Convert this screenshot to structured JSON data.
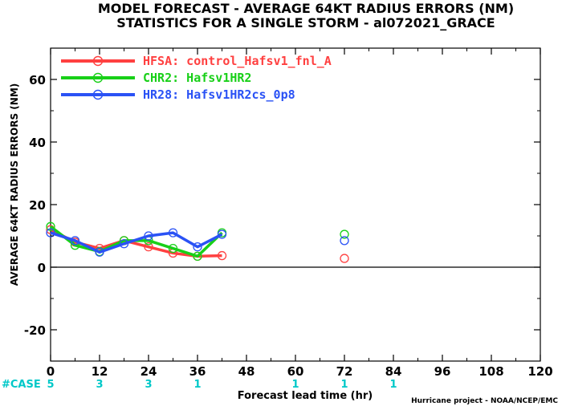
{
  "chart_data": {
    "type": "line",
    "title": "MODEL FORECAST - AVERAGE 64KT RADIUS ERRORS (NM)",
    "subtitle": "STATISTICS FOR A SINGLE STORM - al072021_GRACE",
    "xlabel": "Forecast lead time (hr)",
    "ylabel": "AVERAGE 64KT RADIUS ERRORS (NM)",
    "xlim": [
      0,
      120
    ],
    "ylim": [
      -30,
      70
    ],
    "xticks": [
      0,
      12,
      24,
      36,
      48,
      60,
      72,
      84,
      96,
      108,
      120
    ],
    "yticks": [
      -20,
      0,
      20,
      40,
      60
    ],
    "legend_position": "top-left",
    "series": [
      {
        "name": "HFSA: control_Hafsv1_fnl_A",
        "color": "#ff4040",
        "x": [
          0,
          6,
          12,
          18,
          24,
          30,
          36,
          42,
          72
        ],
        "y": [
          12.0,
          8.0,
          6.0,
          8.5,
          6.5,
          4.5,
          3.5,
          3.7,
          2.8
        ]
      },
      {
        "name": "CHR2: Hafsv1HR2",
        "color": "#18d018",
        "x": [
          0,
          6,
          12,
          18,
          24,
          30,
          36,
          42,
          72
        ],
        "y": [
          13.0,
          7.0,
          5.0,
          8.5,
          8.5,
          6.0,
          3.5,
          11.0,
          10.5
        ]
      },
      {
        "name": "HR28: Hafsv1HR2cs_0p8",
        "color": "#2a52f5",
        "x": [
          0,
          6,
          12,
          18,
          24,
          30,
          36,
          42,
          72
        ],
        "y": [
          11.0,
          8.5,
          4.8,
          7.5,
          10.0,
          11.0,
          6.5,
          10.5,
          8.5
        ]
      }
    ],
    "cases": {
      "label": "#CASE",
      "x": [
        0,
        12,
        24,
        36,
        60,
        72,
        84
      ],
      "values": [
        "5",
        "3",
        "3",
        "1",
        "1",
        "1",
        "1"
      ],
      "color": "#00c8c8"
    },
    "credit": "Hurricane project - NOAA/NCEP/EMC"
  }
}
